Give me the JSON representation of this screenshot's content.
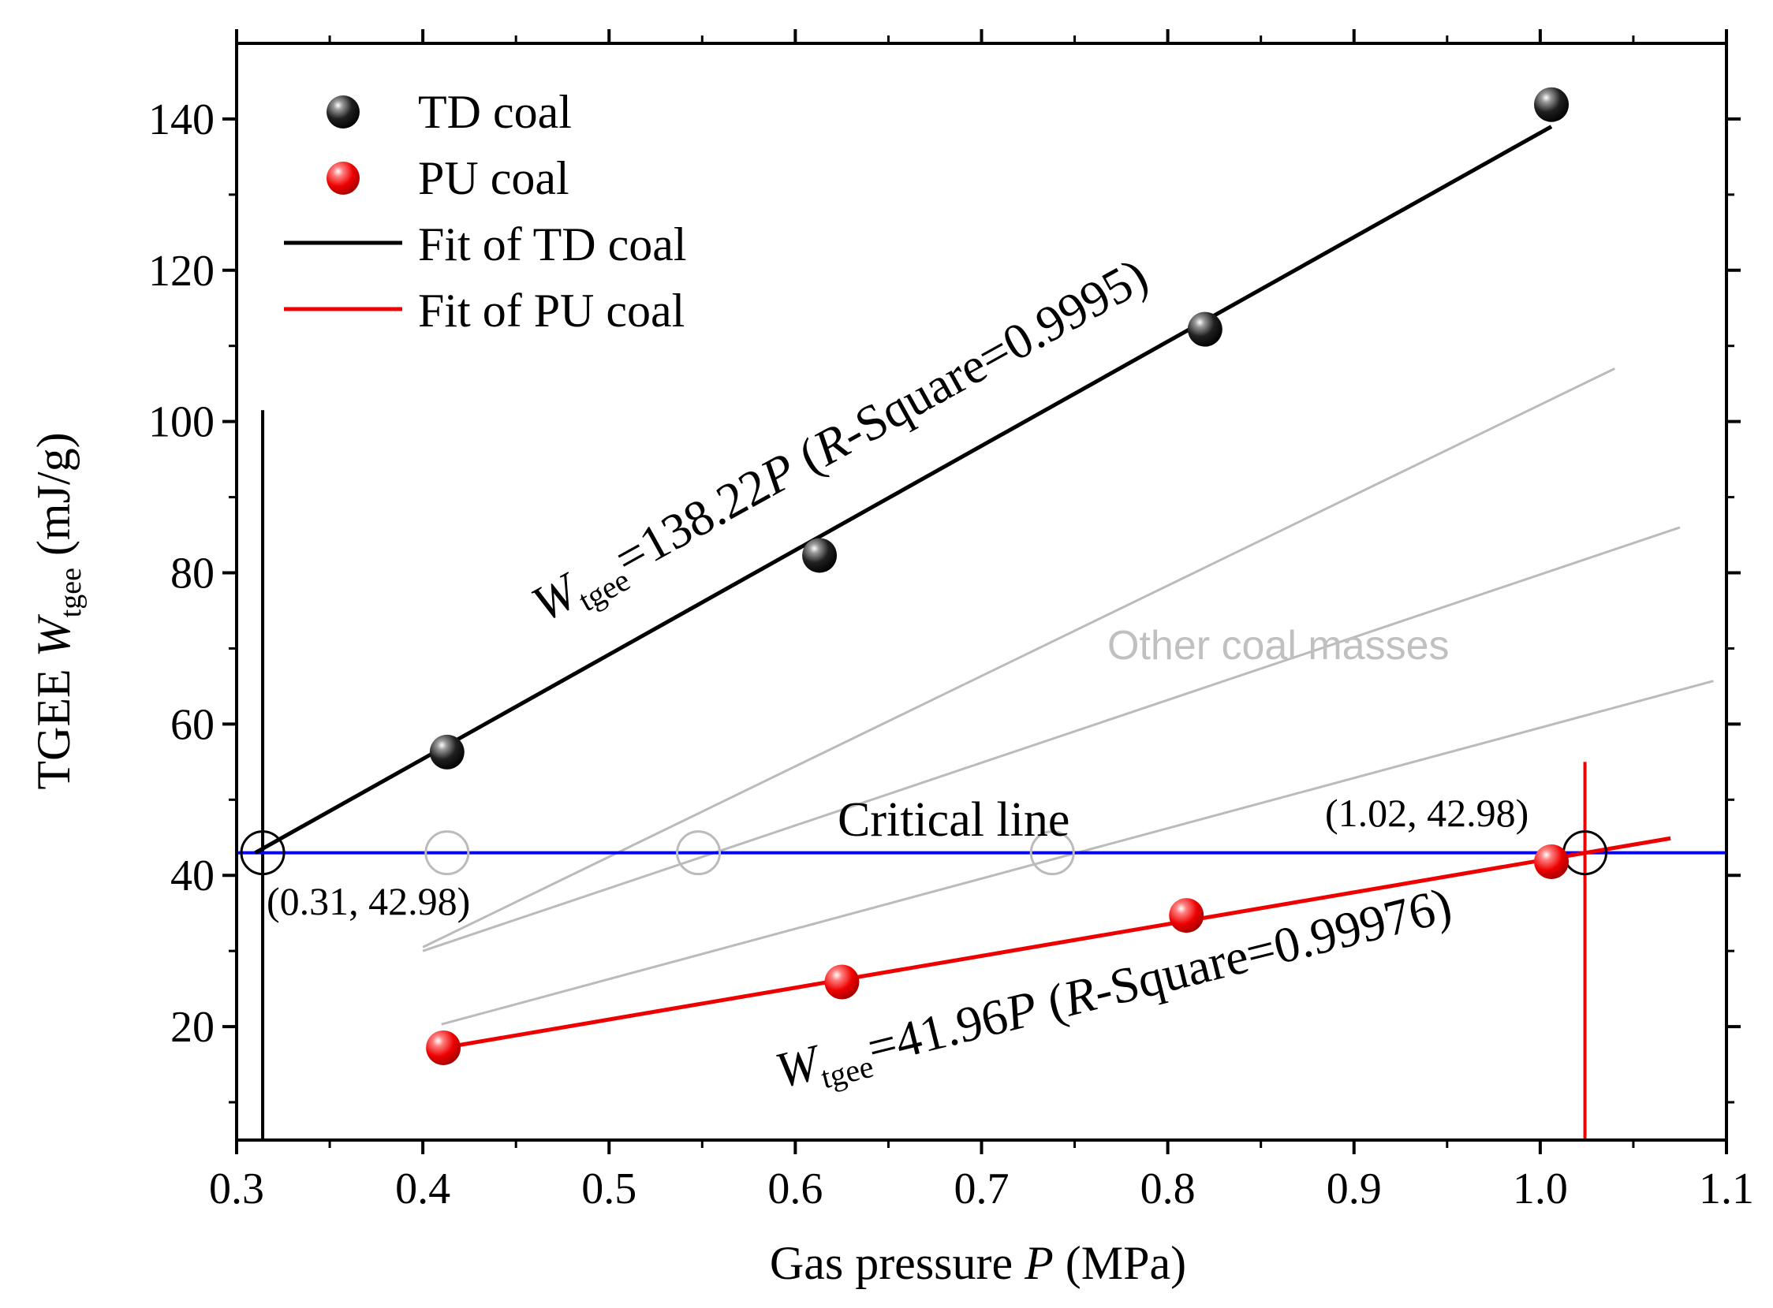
{
  "chart_data": {
    "type": "scatter",
    "xlabel": {
      "prefix": "Gas pressure ",
      "var": "P",
      "unit": " (MPa)"
    },
    "ylabel": {
      "prefix": "TGEE ",
      "var": "W",
      "sub": "tgee",
      "unit": " (mJ/g)"
    },
    "xlim": [
      0.3,
      1.1
    ],
    "ylim": [
      5,
      150
    ],
    "x_ticks": [
      0.3,
      0.4,
      0.5,
      0.6,
      0.7,
      0.8,
      0.9,
      1.0,
      1.1
    ],
    "x_tick_labels": [
      "0.3",
      "0.4",
      "0.5",
      "0.6",
      "0.7",
      "0.8",
      "0.9",
      "1.0",
      "1.1"
    ],
    "y_ticks": [
      20,
      40,
      60,
      80,
      100,
      120,
      140
    ],
    "y_tick_labels": [
      "20",
      "40",
      "60",
      "80",
      "100",
      "120",
      "140"
    ],
    "grid": false,
    "legend_position": "top-left",
    "series": [
      {
        "name": "TD coal",
        "kind": "points",
        "color": "#000000",
        "x": [
          0.413,
          0.613,
          0.82,
          1.006
        ],
        "y": [
          56.3,
          82.3,
          112.2,
          141.9
        ]
      },
      {
        "name": "PU coal",
        "kind": "points",
        "color": "#ee0000",
        "x": [
          0.411,
          0.625,
          0.81,
          1.006
        ],
        "y": [
          17.2,
          25.9,
          34.7,
          41.8
        ]
      },
      {
        "name": "Fit of TD coal",
        "kind": "line",
        "color": "#000000",
        "x": [
          0.31,
          1.006
        ],
        "y": [
          42.98,
          139.0
        ]
      },
      {
        "name": "Fit of PU coal",
        "kind": "line",
        "color": "#ee0000",
        "x": [
          0.411,
          1.07
        ],
        "y": [
          17.2,
          44.9
        ]
      }
    ],
    "other_lines": [
      {
        "x": [
          0.4,
          1.04
        ],
        "y": [
          30.5,
          107.0
        ]
      },
      {
        "x": [
          0.4,
          1.075
        ],
        "y": [
          30.0,
          86.0
        ]
      },
      {
        "x": [
          0.41,
          1.093
        ],
        "y": [
          20.3,
          65.7
        ]
      }
    ],
    "critical_line": {
      "y": 42.98,
      "color": "#0000ee"
    },
    "vertical_markers": [
      {
        "x": 0.314,
        "y_from": 5,
        "y_to": 101.5,
        "color": "#000000"
      },
      {
        "x": 1.024,
        "y_from": 5,
        "y_to": 55.0,
        "color": "#ee0000"
      }
    ],
    "intersection_circles": [
      {
        "x": 0.314,
        "y": 42.98,
        "color": "#000000"
      },
      {
        "x": 0.413,
        "y": 42.98,
        "color": "#bbbbbb"
      },
      {
        "x": 0.548,
        "y": 42.98,
        "color": "#bbbbbb"
      },
      {
        "x": 0.738,
        "y": 42.98,
        "color": "#bbbbbb"
      },
      {
        "x": 1.024,
        "y": 42.98,
        "color": "#000000"
      }
    ],
    "annotations": {
      "critical_line": "Critical line",
      "point_left": "(0.31, 42.98)",
      "point_right": "(1.02, 42.98)",
      "other_coal": "Other coal masses",
      "td_equation": {
        "w": "W",
        "sub": "tgee",
        "coef": "=138.22",
        "p": "P",
        "open": " (",
        "r": "R",
        "rest": "-Square=0.9995)"
      },
      "pu_equation": {
        "w": "W",
        "sub": "tgee",
        "coef": "=41.96",
        "p": "P",
        "open": " (",
        "r": "R",
        "rest": "-Square=0.99976)"
      }
    }
  },
  "colors": {
    "axis": "#000000",
    "td": "#000000",
    "pu": "#ee0000",
    "critical": "#0000ee",
    "other": "#bbbbbb",
    "other_label": "#c0c0c0"
  }
}
